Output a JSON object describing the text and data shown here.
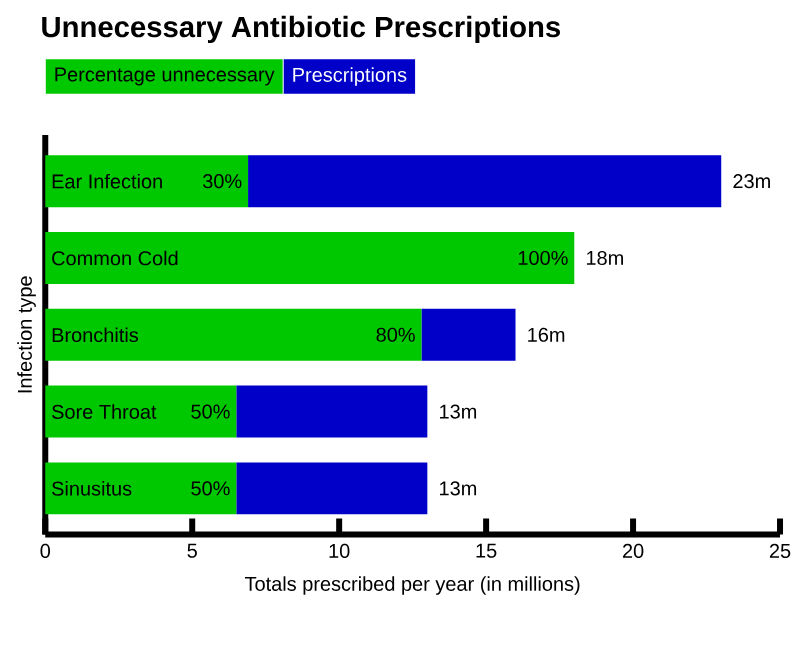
{
  "chart_data": {
    "type": "bar",
    "orientation": "horizontal",
    "stacked": true,
    "title": "Unnecessary Antibiotic Prescriptions",
    "xlabel": "Totals prescribed per year (in millions)",
    "ylabel": "Infection type",
    "categories": [
      "Ear Infection",
      "Common Cold",
      "Bronchitis",
      "Sore Throat",
      "Sinusitus"
    ],
    "series": [
      {
        "name": "Percentage unnecessary",
        "color": "#00c800",
        "values": [
          6.9,
          18,
          12.8,
          6.5,
          6.5
        ]
      },
      {
        "name": "Prescriptions",
        "color": "#0000c8",
        "values": [
          16.1,
          0,
          3.2,
          6.5,
          6.5
        ]
      }
    ],
    "totals": [
      "23m",
      "18m",
      "16m",
      "13m",
      "13m"
    ],
    "xlim": [
      0,
      25
    ],
    "xticks": [
      0,
      5,
      10,
      15,
      20,
      25
    ],
    "annotations": [
      {
        "text": "30%",
        "x": 6.9,
        "y": "Ear Infection"
      },
      {
        "text": "100%",
        "x": 18,
        "y": "Common Cold"
      },
      {
        "text": "80%",
        "x": 12.8,
        "y": "Bronchitis"
      },
      {
        "text": "50%",
        "x": 6.5,
        "y": "Sore Throat"
      },
      {
        "text": "50%",
        "x": 6.5,
        "y": "Sinusitus"
      }
    ],
    "legend": "top left"
  }
}
